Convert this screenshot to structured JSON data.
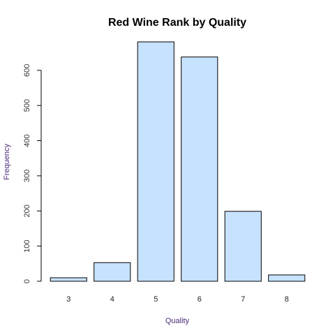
{
  "chart_data": {
    "type": "bar",
    "title": "Red Wine Rank by Quality",
    "xlabel": "Quality",
    "ylabel": "Frequency",
    "categories": [
      "3",
      "4",
      "5",
      "6",
      "7",
      "8"
    ],
    "values": [
      10,
      53,
      681,
      638,
      199,
      18
    ],
    "ylim": [
      0,
      681
    ],
    "yticks": [
      0,
      100,
      200,
      300,
      400,
      500,
      600
    ],
    "grid": false,
    "bar_color": "#C6E2FF",
    "bar_border_color": "#000000",
    "label_color": "#4B2A7B"
  }
}
